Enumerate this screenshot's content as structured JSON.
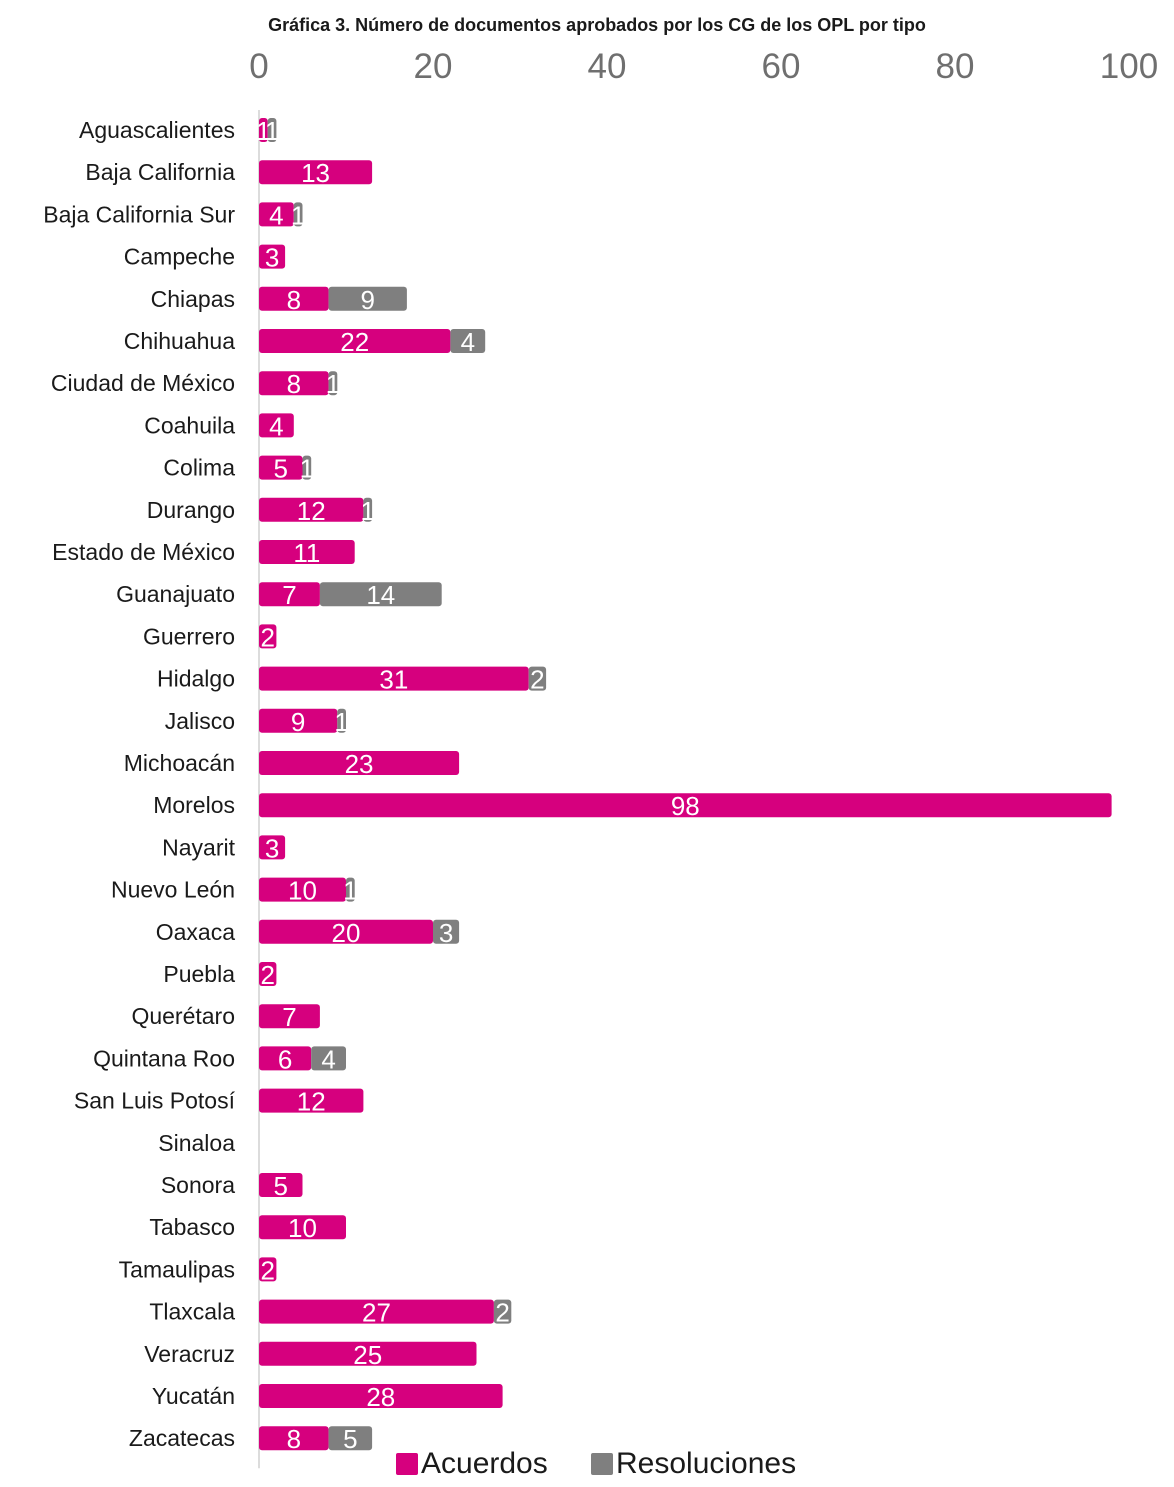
{
  "chart_data": {
    "type": "bar",
    "orientation": "horizontal",
    "stacked": true,
    "title": "Gráfica 3. Número de documentos aprobados por los CG de los OPL por tipo",
    "xlim": [
      0,
      100
    ],
    "xticks": [
      0,
      20,
      40,
      60,
      80,
      100
    ],
    "grid": false,
    "legend_position": "bottom",
    "categories": [
      "Aguascalientes",
      "Baja California",
      "Baja California Sur",
      "Campeche",
      "Chiapas",
      "Chihuahua",
      "Ciudad de México",
      "Coahuila",
      "Colima",
      "Durango",
      "Estado de México",
      "Guanajuato",
      "Guerrero",
      "Hidalgo",
      "Jalisco",
      "Michoacán",
      "Morelos",
      "Nayarit",
      "Nuevo León",
      "Oaxaca",
      "Puebla",
      "Querétaro",
      "Quintana Roo",
      "San Luis Potosí",
      "Sinaloa",
      "Sonora",
      "Tabasco",
      "Tamaulipas",
      "Tlaxcala",
      "Veracruz",
      "Yucatán",
      "Zacatecas"
    ],
    "series": [
      {
        "name": "Acuerdos",
        "color": "#d6007e",
        "values": [
          1,
          13,
          4,
          3,
          8,
          22,
          8,
          4,
          5,
          12,
          11,
          7,
          2,
          31,
          9,
          23,
          98,
          3,
          10,
          20,
          2,
          7,
          6,
          12,
          0,
          5,
          10,
          2,
          27,
          25,
          28,
          8
        ]
      },
      {
        "name": "Resoluciones",
        "color": "#7f7f7f",
        "values": [
          1,
          0,
          1,
          0,
          9,
          4,
          1,
          0,
          1,
          1,
          0,
          14,
          0,
          2,
          1,
          0,
          0,
          0,
          1,
          3,
          0,
          0,
          4,
          0,
          0,
          0,
          0,
          0,
          2,
          0,
          0,
          5
        ]
      }
    ]
  }
}
